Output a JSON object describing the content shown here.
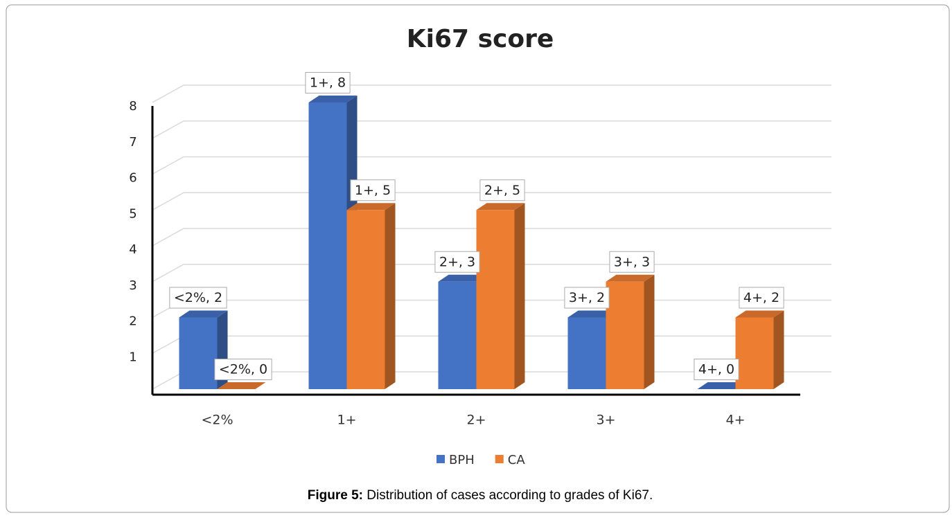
{
  "chart_data": {
    "type": "bar",
    "title": "Ki67 score",
    "categories": [
      "<2%",
      "1+",
      "2+",
      "3+",
      "4+"
    ],
    "series": [
      {
        "name": "BPH",
        "color": "#4472c4",
        "values": [
          2,
          8,
          3,
          2,
          0
        ],
        "value_labels": [
          "<2%, 2",
          "1+, 8",
          "2+, 3",
          "3+, 2",
          "4+, 0"
        ]
      },
      {
        "name": "CA",
        "color": "#ed7d31",
        "values": [
          0,
          5,
          5,
          3,
          2
        ],
        "value_labels": [
          "<2%, 0",
          "1+, 5",
          "2+, 5",
          "3+, 3",
          "4+, 2"
        ]
      }
    ],
    "ylim": [
      0,
      8
    ],
    "yticks": [
      1,
      2,
      3,
      4,
      5,
      6,
      7,
      8
    ],
    "grid": true,
    "legend": "bottom"
  },
  "caption": {
    "label": "Figure 5:",
    "text": "Distribution of cases according to grades of Ki67."
  }
}
